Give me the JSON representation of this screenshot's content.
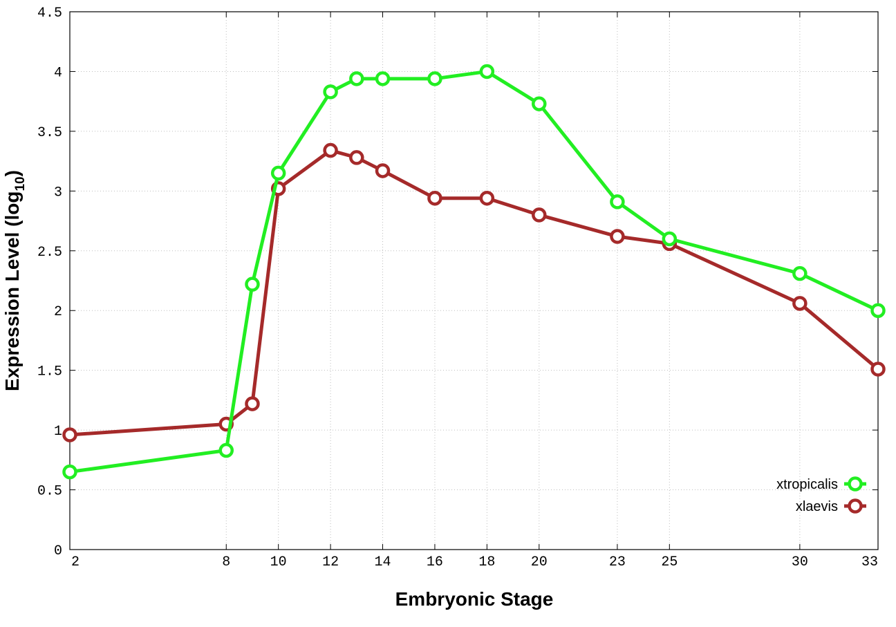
{
  "chart_data": {
    "type": "line",
    "title": "",
    "xlabel": "Embryonic Stage",
    "ylabel_main": "Expression Level (log",
    "ylabel_sub": "10",
    "ylabel_close": ")",
    "x": [
      2,
      8,
      9,
      10,
      12,
      13,
      14,
      16,
      18,
      20,
      23,
      25,
      30,
      33
    ],
    "x_ticks": [
      2,
      8,
      10,
      12,
      14,
      16,
      18,
      20,
      23,
      25,
      30,
      33
    ],
    "y_ticks": [
      "0",
      "0.5",
      "1",
      "1.5",
      "2",
      "2.5",
      "3",
      "3.5",
      "4",
      "4.5"
    ],
    "xlim": [
      2,
      33
    ],
    "ylim": [
      0,
      4.5
    ],
    "grid": true,
    "legend_position": "bottom-right",
    "series": [
      {
        "name": "xtropicalis",
        "color": "#22ee22",
        "values": [
          0.65,
          0.83,
          2.22,
          3.15,
          3.83,
          3.94,
          3.94,
          3.94,
          4.0,
          3.73,
          2.91,
          2.6,
          2.31,
          2.0
        ]
      },
      {
        "name": "xlaevis",
        "color": "#a52a2a",
        "values": [
          0.96,
          1.05,
          1.22,
          3.02,
          3.34,
          3.28,
          3.17,
          2.94,
          2.94,
          2.8,
          2.62,
          2.56,
          2.06,
          1.51
        ]
      }
    ]
  }
}
